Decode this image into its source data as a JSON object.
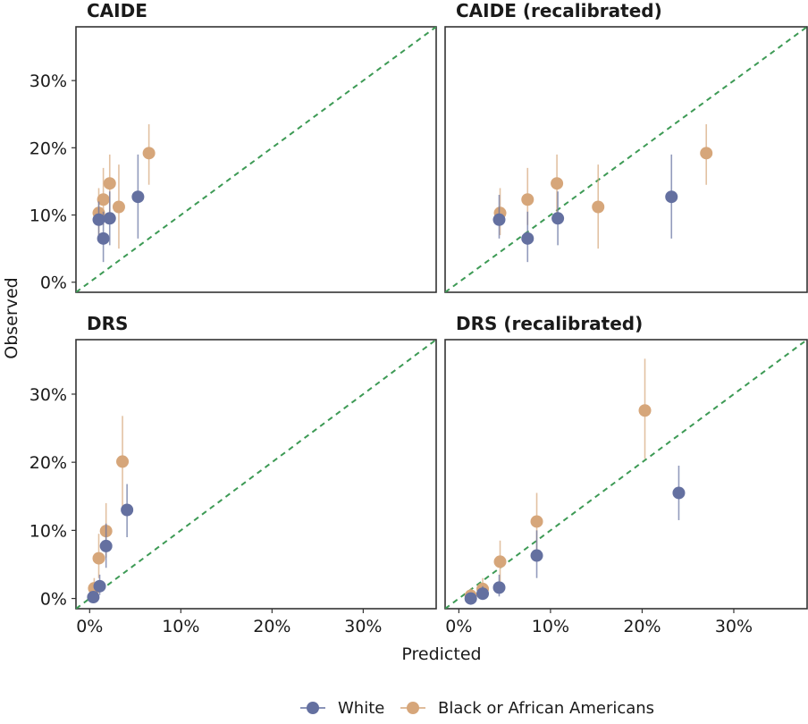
{
  "chart_data": {
    "type": "scatter",
    "xlabel": "Predicted",
    "ylabel": "Observed",
    "xlim": [
      -1.5,
      38
    ],
    "ylim": [
      -1.5,
      38
    ],
    "x_ticks": [
      0,
      10,
      20,
      30
    ],
    "y_ticks": [
      0,
      10,
      20,
      30
    ],
    "tick_format": "{}%",
    "reference_line": "y = x",
    "colors": {
      "White": "#6470a0",
      "Black or African Americans": "#d6a67a",
      "reference": "#3d9a55"
    },
    "legend": {
      "position": "bottom",
      "entries": [
        "White",
        "Black or African Americans"
      ]
    },
    "panels": [
      {
        "title": "CAIDE",
        "series": [
          {
            "name": "Black or African Americans",
            "points": [
              {
                "x": 1.0,
                "y": 10.3,
                "lo": 7.0,
                "hi": 14.0
              },
              {
                "x": 1.5,
                "y": 12.3,
                "lo": 8.5,
                "hi": 17.0
              },
              {
                "x": 2.2,
                "y": 14.7,
                "lo": 10.0,
                "hi": 19.0
              },
              {
                "x": 3.2,
                "y": 11.2,
                "lo": 5.0,
                "hi": 17.5
              },
              {
                "x": 6.5,
                "y": 19.2,
                "lo": 14.5,
                "hi": 23.5
              }
            ]
          },
          {
            "name": "White",
            "points": [
              {
                "x": 1.0,
                "y": 9.3,
                "lo": 7.0,
                "hi": 12.0
              },
              {
                "x": 1.5,
                "y": 6.5,
                "lo": 3.0,
                "hi": 10.5
              },
              {
                "x": 2.2,
                "y": 9.5,
                "lo": 5.5,
                "hi": 13.5
              },
              {
                "x": 5.3,
                "y": 12.7,
                "lo": 6.5,
                "hi": 19.0
              }
            ]
          }
        ]
      },
      {
        "title": "CAIDE (recalibrated)",
        "series": [
          {
            "name": "Black or African Americans",
            "points": [
              {
                "x": 4.5,
                "y": 10.3,
                "lo": 7.0,
                "hi": 14.0
              },
              {
                "x": 7.5,
                "y": 12.3,
                "lo": 8.5,
                "hi": 17.0
              },
              {
                "x": 10.7,
                "y": 14.7,
                "lo": 10.0,
                "hi": 19.0
              },
              {
                "x": 15.2,
                "y": 11.2,
                "lo": 5.0,
                "hi": 17.5
              },
              {
                "x": 27.0,
                "y": 19.2,
                "lo": 14.5,
                "hi": 23.5
              }
            ]
          },
          {
            "name": "White",
            "points": [
              {
                "x": 4.4,
                "y": 9.3,
                "lo": 6.5,
                "hi": 13.0
              },
              {
                "x": 7.5,
                "y": 6.5,
                "lo": 3.0,
                "hi": 10.5
              },
              {
                "x": 10.8,
                "y": 9.5,
                "lo": 5.5,
                "hi": 13.5
              },
              {
                "x": 23.2,
                "y": 12.7,
                "lo": 6.5,
                "hi": 19.0
              }
            ]
          }
        ]
      },
      {
        "title": "DRS",
        "series": [
          {
            "name": "Black or African Americans",
            "points": [
              {
                "x": 0.5,
                "y": 1.5,
                "lo": 0.5,
                "hi": 3.0
              },
              {
                "x": 1.0,
                "y": 5.9,
                "lo": 3.0,
                "hi": 9.5
              },
              {
                "x": 1.8,
                "y": 9.9,
                "lo": 6.0,
                "hi": 14.0
              },
              {
                "x": 3.6,
                "y": 20.1,
                "lo": 13.5,
                "hi": 26.8
              }
            ]
          },
          {
            "name": "White",
            "points": [
              {
                "x": 0.4,
                "y": 0.2,
                "lo": 0.0,
                "hi": 0.8
              },
              {
                "x": 1.1,
                "y": 1.8,
                "lo": 0.5,
                "hi": 3.5
              },
              {
                "x": 1.8,
                "y": 7.7,
                "lo": 4.5,
                "hi": 11.0
              },
              {
                "x": 4.1,
                "y": 13.0,
                "lo": 9.0,
                "hi": 16.8
              }
            ]
          }
        ]
      },
      {
        "title": "DRS (recalibrated)",
        "series": [
          {
            "name": "Black or African Americans",
            "points": [
              {
                "x": 1.3,
                "y": 0.4,
                "lo": 0.0,
                "hi": 1.5
              },
              {
                "x": 2.6,
                "y": 1.4,
                "lo": 0.3,
                "hi": 3.0
              },
              {
                "x": 4.5,
                "y": 5.4,
                "lo": 2.5,
                "hi": 8.5
              },
              {
                "x": 8.5,
                "y": 11.3,
                "lo": 7.0,
                "hi": 15.5
              },
              {
                "x": 20.3,
                "y": 27.6,
                "lo": 20.5,
                "hi": 35.2
              }
            ]
          },
          {
            "name": "White",
            "points": [
              {
                "x": 1.3,
                "y": 0.0,
                "lo": 0.0,
                "hi": 0.5
              },
              {
                "x": 2.6,
                "y": 0.7,
                "lo": 0.0,
                "hi": 1.8
              },
              {
                "x": 4.4,
                "y": 1.6,
                "lo": 0.3,
                "hi": 3.5
              },
              {
                "x": 8.5,
                "y": 6.3,
                "lo": 3.0,
                "hi": 10.0
              },
              {
                "x": 24.0,
                "y": 15.5,
                "lo": 11.5,
                "hi": 19.5
              }
            ]
          }
        ]
      }
    ]
  }
}
